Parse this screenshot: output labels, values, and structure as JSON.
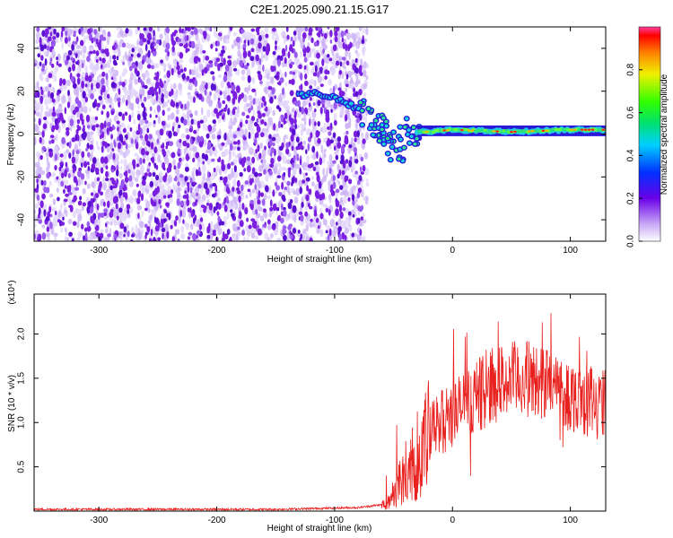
{
  "title": "C2E1.2025.090.21.15.G17",
  "colors": {
    "snr_line": "#e8201e",
    "speckle_dark": "#7a1fe0",
    "speckle_light": "#cdb3f5"
  },
  "chart_data": [
    {
      "type": "heatmap",
      "name": "spectrogram",
      "xlabel": "Height of straight line (km)",
      "ylabel": "Frequency (Hz)",
      "xlim": [
        -355,
        130
      ],
      "ylim": [
        -50,
        50
      ],
      "xticks": [
        -300,
        -200,
        -100,
        0,
        100
      ],
      "yticks": [
        -40,
        -20,
        0,
        20,
        40
      ],
      "colorbar": {
        "label": "Normalized spectral amplitude",
        "range": [
          0.0,
          1.0
        ],
        "ticks": [
          0.0,
          0.2,
          0.4,
          0.6,
          0.8
        ]
      },
      "noise_region_x": [
        -355,
        -75
      ],
      "signal_track": [
        {
          "x": -130,
          "y": 18
        },
        {
          "x": -115,
          "y": 19
        },
        {
          "x": -100,
          "y": 17
        },
        {
          "x": -80,
          "y": 12
        },
        {
          "x": -70,
          "y": 7
        },
        {
          "x": -60,
          "y": 3
        },
        {
          "x": -50,
          "y": -1
        },
        {
          "x": -40,
          "y": 1
        },
        {
          "x": -20,
          "y": 1
        },
        {
          "x": 0,
          "y": 2
        },
        {
          "x": 50,
          "y": 1
        },
        {
          "x": 100,
          "y": 2
        },
        {
          "x": 130,
          "y": 2
        }
      ]
    },
    {
      "type": "line",
      "name": "snr",
      "xlabel": "Height of straight line (km)",
      "ylabel": "SNR (10 * v/v)",
      "multiplier": "(x10⁴)",
      "xlim": [
        -355,
        130
      ],
      "ylim": [
        0,
        2.45
      ],
      "xticks": [
        -300,
        -200,
        -100,
        0,
        100
      ],
      "yticks": [
        0.5,
        1.0,
        1.5,
        2.0
      ],
      "envelope": [
        {
          "x": -355,
          "y": 0.02
        },
        {
          "x": -150,
          "y": 0.02
        },
        {
          "x": -80,
          "y": 0.04
        },
        {
          "x": -55,
          "y": 0.08
        },
        {
          "x": -45,
          "y": 0.35
        },
        {
          "x": -35,
          "y": 0.45
        },
        {
          "x": -25,
          "y": 0.7
        },
        {
          "x": -15,
          "y": 0.95
        },
        {
          "x": 0,
          "y": 1.1
        },
        {
          "x": 20,
          "y": 1.3
        },
        {
          "x": 40,
          "y": 1.45
        },
        {
          "x": 60,
          "y": 1.5
        },
        {
          "x": 80,
          "y": 1.45
        },
        {
          "x": 100,
          "y": 1.3
        },
        {
          "x": 120,
          "y": 1.25
        },
        {
          "x": 130,
          "y": 1.2
        }
      ]
    }
  ]
}
